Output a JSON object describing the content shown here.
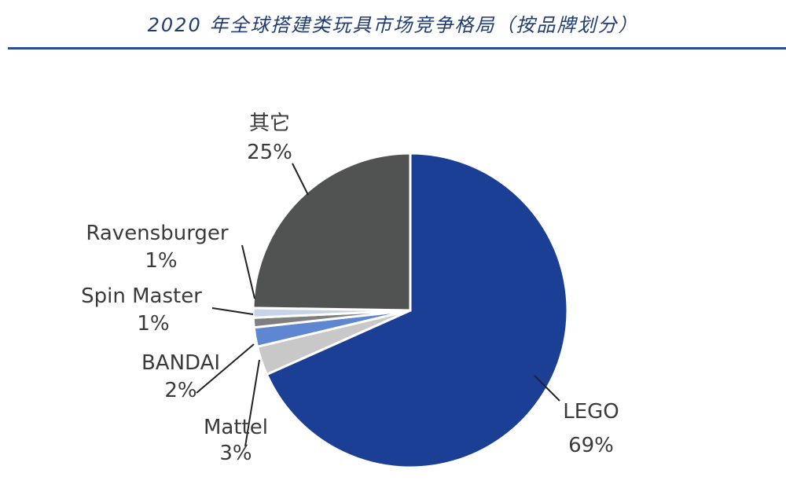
{
  "title": "2020 年全球搭建类玩具市场竞争格局（按品牌划分）",
  "chart_data": {
    "type": "pie",
    "title": "2020 年全球搭建类玩具市场竞争格局（按品牌划分）",
    "slices": [
      {
        "name": "LEGO",
        "value": 69,
        "label": "69%",
        "color": "#1b3f94"
      },
      {
        "name": "Mattel",
        "value": 3,
        "label": "3%",
        "color": "#c8c8c8"
      },
      {
        "name": "BANDAI",
        "value": 2,
        "label": "2%",
        "color": "#5f86d0"
      },
      {
        "name": "Spin Master",
        "value": 1,
        "label": "1%",
        "color": "#7f7f7f"
      },
      {
        "name": "Ravensburger",
        "value": 1,
        "label": "1%",
        "color": "#c6d4ea"
      },
      {
        "name": "其它",
        "value": 25,
        "label": "25%",
        "color": "#505352"
      }
    ],
    "start_angle_deg": 0,
    "direction": "clockwise"
  }
}
